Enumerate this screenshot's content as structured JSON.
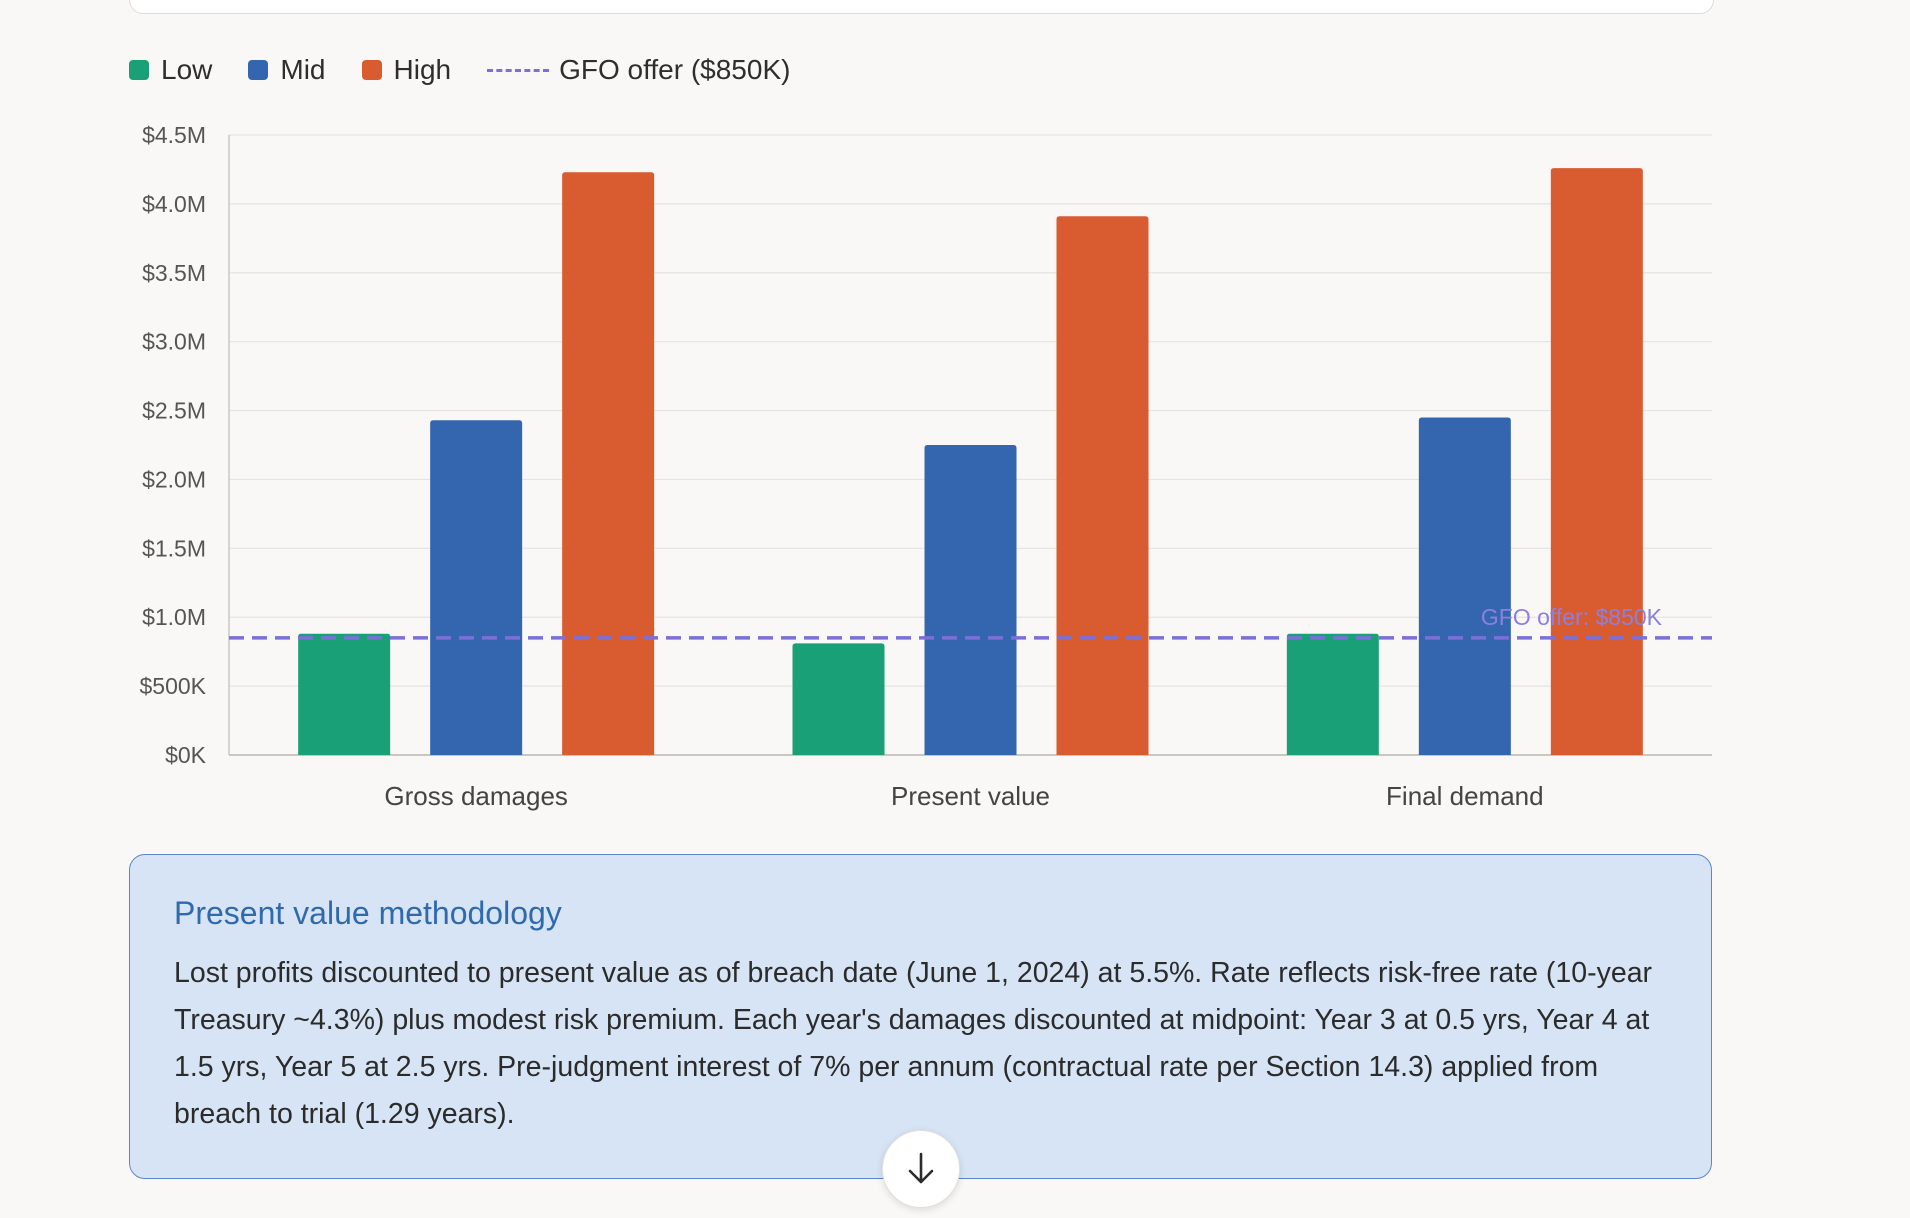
{
  "legend": {
    "low": "Low",
    "mid": "Mid",
    "high": "High",
    "offer": "GFO offer ($850K)"
  },
  "colors": {
    "low": "#1aa077",
    "mid": "#3366ae",
    "high": "#d95b30",
    "offer": "#7b6fd8",
    "grid": "#e6e4df",
    "axis": "#c9c7c2"
  },
  "chart_data": {
    "type": "bar",
    "title": "",
    "xlabel": "",
    "ylabel": "",
    "ylim": [
      0,
      4500000
    ],
    "yticks": [
      0,
      500000,
      1000000,
      1500000,
      2000000,
      2500000,
      3000000,
      3500000,
      4000000,
      4500000
    ],
    "ytick_labels": [
      "$0K",
      "$500K",
      "$1.0M",
      "$1.5M",
      "$2.0M",
      "$2.5M",
      "$3.0M",
      "$3.5M",
      "$4.0M",
      "$4.5M"
    ],
    "categories": [
      "Gross damages",
      "Present value",
      "Final demand"
    ],
    "series": [
      {
        "name": "Low",
        "values": [
          880000,
          810000,
          880000
        ]
      },
      {
        "name": "Mid",
        "values": [
          2430000,
          2250000,
          2450000
        ]
      },
      {
        "name": "High",
        "values": [
          4230000,
          3910000,
          4260000
        ]
      }
    ],
    "grid": true,
    "legend": "top-left",
    "reference_line": {
      "value": 850000,
      "label": "GFO offer: $850K"
    }
  },
  "methodology": {
    "title": "Present value methodology",
    "body": "Lost profits discounted to present value as of breach date (June 1, 2024) at 5.5%. Rate reflects risk-free rate (10-year Treasury ~4.3%) plus modest risk premium. Each year's damages discounted at midpoint: Year 3 at 0.5 yrs, Year 4 at 1.5 yrs, Year 5 at 2.5 yrs. Pre-judgment interest of 7% per annum (contractual rate per Section 14.3) applied from breach to trial (1.29 years)."
  },
  "scroll": {
    "icon": "arrow-down-icon"
  }
}
